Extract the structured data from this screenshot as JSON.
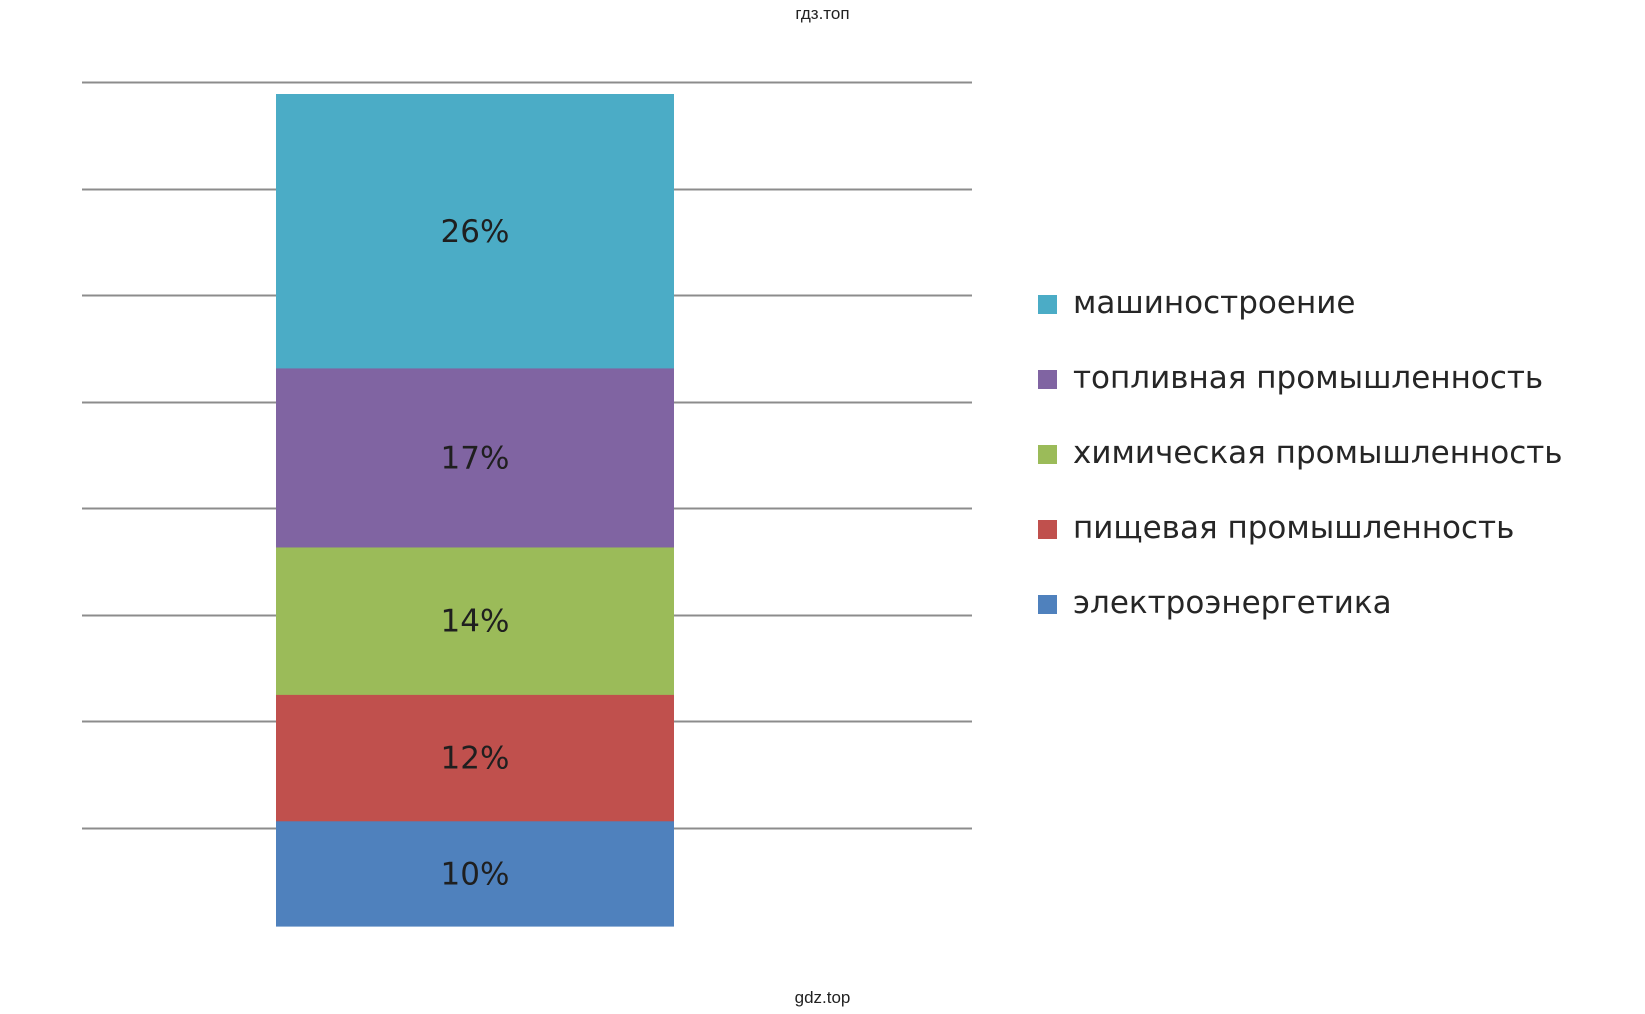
{
  "watermark_top": "гдз.топ",
  "watermark_bottom": "gdz.top",
  "chart_data": {
    "type": "bar",
    "stacked": true,
    "title": "",
    "xlabel": "",
    "ylabel": "",
    "grid": true,
    "legend_position": "right",
    "categories": [
      ""
    ],
    "series": [
      {
        "name": "электроэнергетика",
        "values": [
          10
        ],
        "label": "10%",
        "color": "#4f81bd"
      },
      {
        "name": "пищевая промышленность",
        "values": [
          12
        ],
        "label": "12%",
        "color": "#c0504d"
      },
      {
        "name": "химическая промышленность",
        "values": [
          14
        ],
        "label": "14%",
        "color": "#9bbb59"
      },
      {
        "name": "топливная промышленность",
        "values": [
          17
        ],
        "label": "17%",
        "color": "#8064a2"
      },
      {
        "name": "машиностроение",
        "values": [
          26
        ],
        "label": "26%",
        "color": "#4bacc6"
      }
    ],
    "gridline_color": "#8c8c8c"
  }
}
